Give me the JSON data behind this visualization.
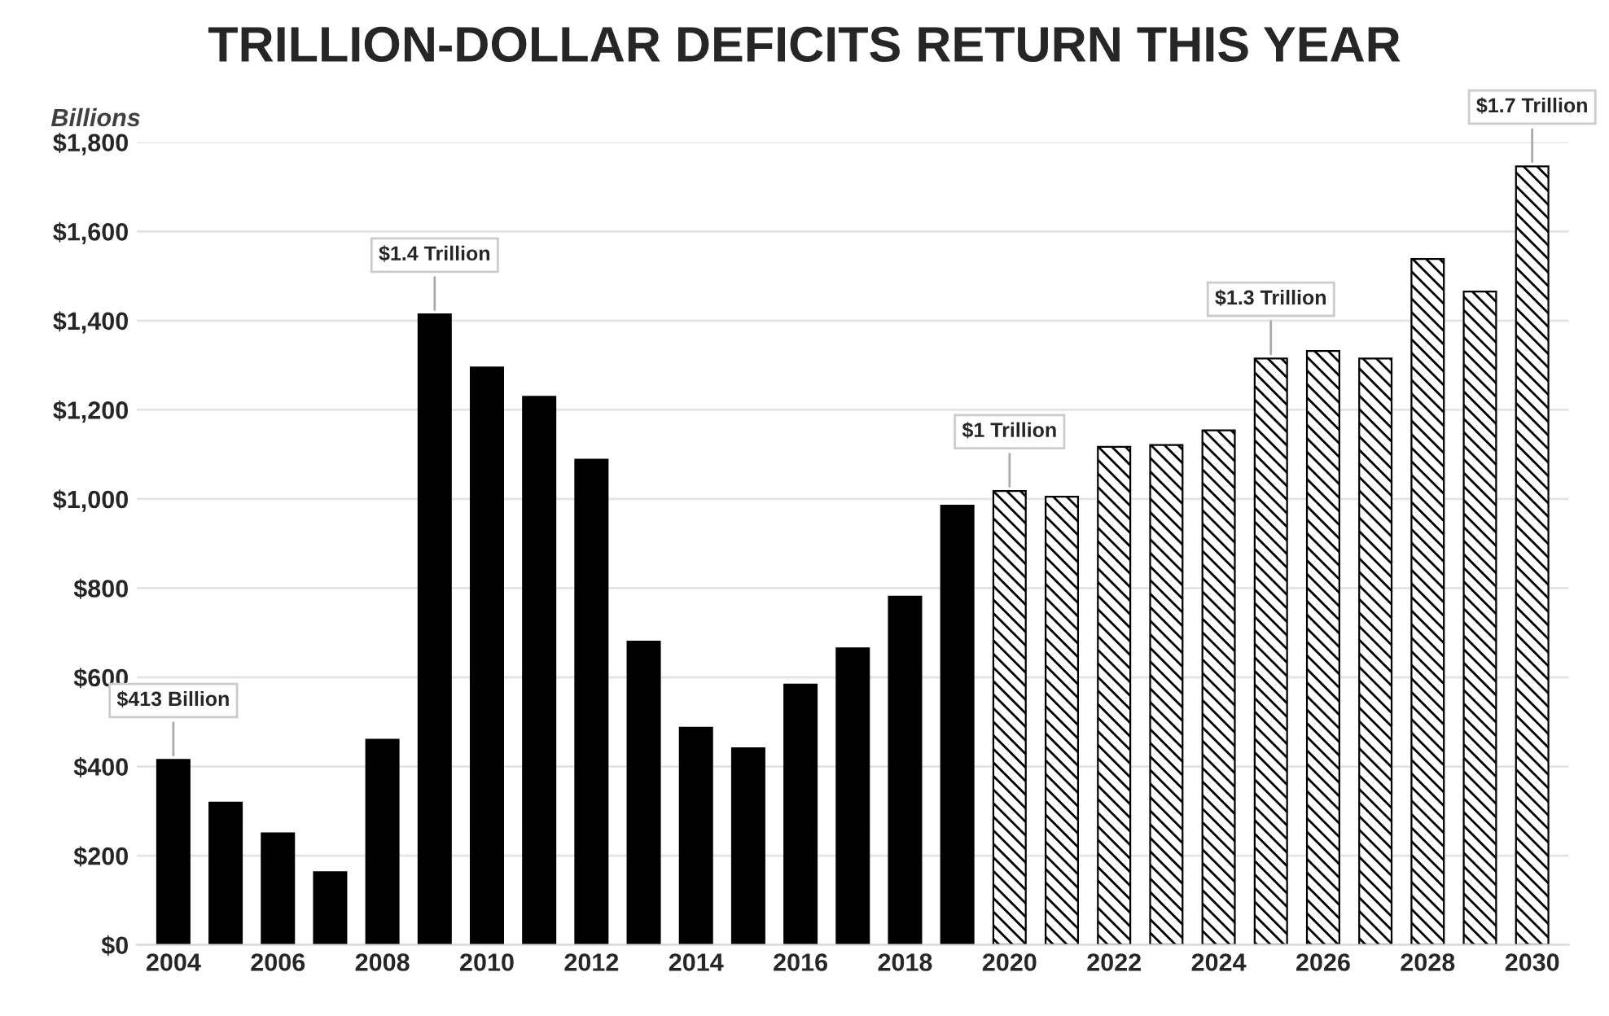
{
  "chart_data": {
    "type": "bar",
    "title": "TRILLION-DOLLAR DEFICITS RETURN THIS YEAR",
    "ylabel": "Billions",
    "series": [
      {
        "color": "#000000",
        "x": [
          2004,
          2005,
          2006,
          2007,
          2008,
          2009,
          2010,
          2011,
          2012,
          2013,
          2014,
          2015,
          2016,
          2017,
          2018,
          2019
        ],
        "values": [
          415,
          319,
          250,
          163,
          460,
          1414,
          1295,
          1229,
          1088,
          680,
          487,
          441,
          584,
          665,
          781,
          985
        ]
      },
      {
        "color": "#000000",
        "x": [
          2020,
          2021,
          2022,
          2023,
          2024,
          2025,
          2026,
          2027,
          2028,
          2029,
          2030
        ],
        "values": [
          1018,
          1005,
          1117,
          1121,
          1154,
          1315,
          1332,
          1315,
          1538,
          1465,
          1746
        ]
      }
    ],
    "xlim": [
      2003.3,
      2030.7
    ],
    "xticks": [
      2004,
      2006,
      2008,
      2010,
      2012,
      2014,
      2016,
      2018,
      2020,
      2022,
      2024,
      2026,
      2028,
      2030
    ],
    "ylim": [
      0,
      1800
    ],
    "yticks": [
      {
        "value": 0,
        "label": "$0"
      },
      {
        "value": 200,
        "label": "$200"
      },
      {
        "value": 400,
        "label": "$400"
      },
      {
        "value": 600,
        "label": "$600"
      },
      {
        "value": 800,
        "label": "$800"
      },
      {
        "value": 1000,
        "label": "$1,000"
      },
      {
        "value": 1200,
        "label": "$1,200"
      },
      {
        "value": 1400,
        "label": "$1,400"
      },
      {
        "value": 1600,
        "label": "$1,600"
      },
      {
        "value": 1800,
        "label": "$1,800"
      }
    ],
    "annotations": [
      {
        "text": "$413 Billion",
        "x": 2004,
        "y": 415
      },
      {
        "text": "$1.4 Trillion",
        "x": 2009,
        "y": 1414
      },
      {
        "text": "$1 Trillion",
        "x": 2020,
        "y": 1018
      },
      {
        "text": "$1.3 Trillion",
        "x": 2025,
        "y": 1315
      },
      {
        "text": "$1.7 Trillion",
        "x": 2030,
        "y": 1746
      }
    ],
    "grid": "y",
    "legend": false
  }
}
